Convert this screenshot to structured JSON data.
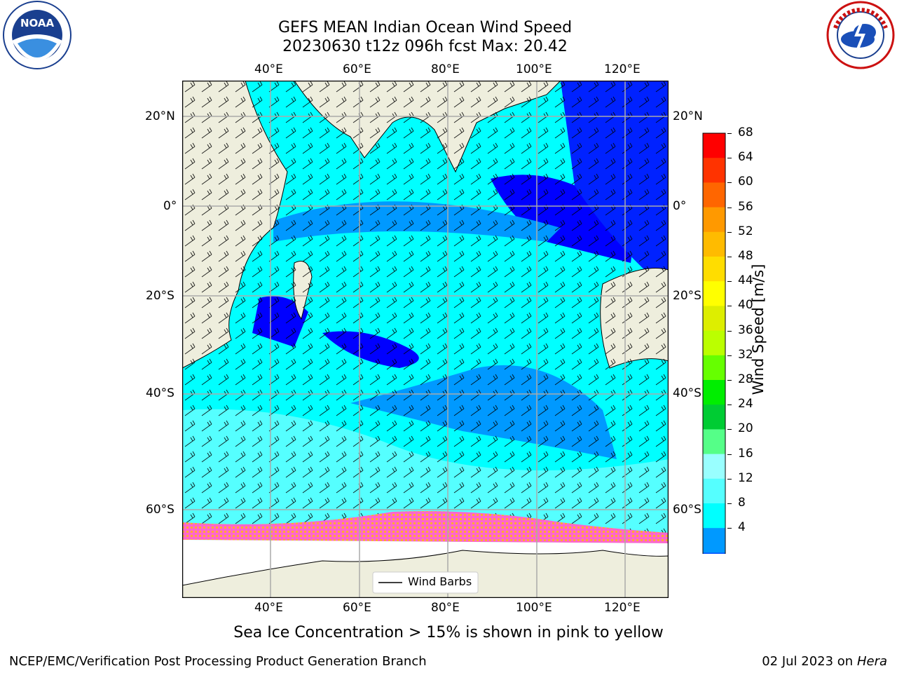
{
  "title": {
    "line1": "GEFS MEAN Indian Ocean Wind Speed",
    "line2": "20230630 t12z 096h fcst   Max: 20.42"
  },
  "logos": {
    "left": {
      "name": "NOAA",
      "ring_text": "NATIONAL OCEANIC AND ATMOSPHERIC ADMINISTRATION · U.S. DEPARTMENT OF COMMERCE"
    },
    "right": {
      "name": "NATIONAL WEATHER SERVICE"
    }
  },
  "map": {
    "lon_ticks": [
      "40°E",
      "60°E",
      "80°E",
      "100°E",
      "120°E"
    ],
    "lat_ticks_left": [
      "20°N",
      "0°",
      "20°S",
      "40°S",
      "60°S"
    ],
    "lat_ticks_right": [
      "20°N",
      "0°",
      "20°S",
      "40°S",
      "60°S"
    ],
    "legend_label": "Wind Barbs",
    "colors": {
      "land": "#eeeedd",
      "ocean_light": "#00ffff",
      "ocean_mid": "#55ccff",
      "ocean_dark": "#0000ff",
      "sea_ice": "#ff66cc"
    }
  },
  "colorbar": {
    "label": "Wind Speed [m/s]",
    "ticks": [
      "68",
      "64",
      "60",
      "56",
      "52",
      "48",
      "44",
      "40",
      "36",
      "32",
      "28",
      "24",
      "20",
      "16",
      "12",
      "8",
      "4"
    ],
    "colors": [
      "#ff0000",
      "#ff3300",
      "#ff6600",
      "#ff9900",
      "#ffbb00",
      "#ffdd00",
      "#ffff00",
      "#ddee00",
      "#bbff00",
      "#66ff00",
      "#00ee00",
      "#00cc33",
      "#55ff88",
      "#99ffff",
      "#55ffff",
      "#00ffff",
      "#0099ff",
      "#0055ff"
    ],
    "extend_color": "#0000ff"
  },
  "note": "Sea Ice Concentration > 15% is shown in pink to yellow",
  "footer": {
    "left": "NCEP/EMC/Verification Post Processing Product Generation Branch",
    "date": "02 Jul 2023 on ",
    "host": "Hera"
  }
}
